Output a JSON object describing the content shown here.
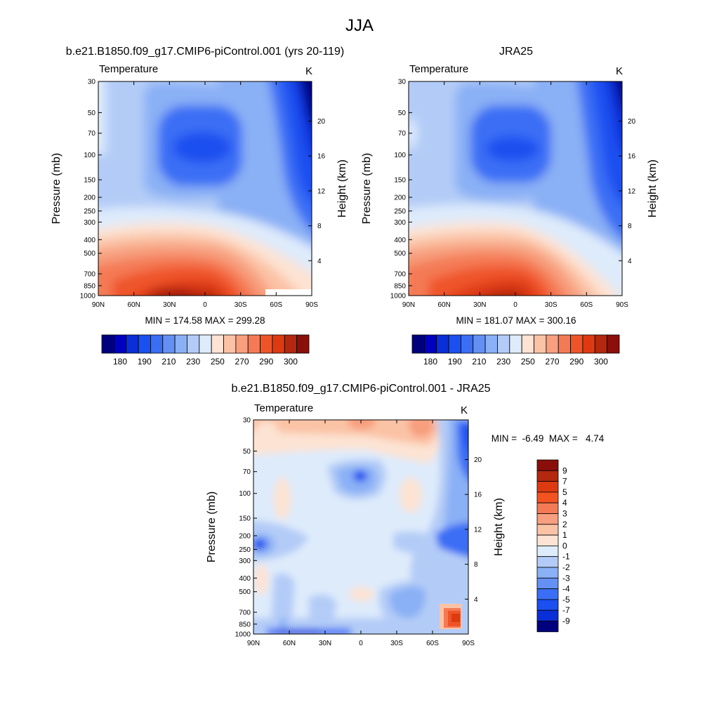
{
  "page_title": "JJA",
  "colors": {
    "temp_levels": [
      "#00007f",
      "#0000c0",
      "#0a2fd8",
      "#1a4ff0",
      "#3a6ef5",
      "#6390f2",
      "#8ab0f5",
      "#b3ccf7",
      "#deebfb",
      "#fde3d3",
      "#fbc3a6",
      "#f79f7e",
      "#f47a55",
      "#ef5429",
      "#de3a12",
      "#b3280e",
      "#8a0f0a"
    ],
    "diff_levels": [
      "#8a0f0a",
      "#b3280e",
      "#de3a12",
      "#f35321",
      "#f47a55",
      "#f79f7e",
      "#fbc3a6",
      "#fde3d3",
      "#deebfb",
      "#b3ccf7",
      "#8ab0f5",
      "#6390f2",
      "#3a6ef5",
      "#1a4ff0",
      "#0a2fd8",
      "#00007f"
    ]
  },
  "chart_data": [
    {
      "type": "heatmap",
      "title": "b.e21.B1850.f09_g17.CMIP6-piControl.001 (yrs 20-119)",
      "left_label": "Temperature",
      "right_label": "K",
      "xlabel": "",
      "ylabel": "Pressure (mb)",
      "y2label": "Height (km)",
      "x_ticks": [
        "90N",
        "60N",
        "30N",
        "0",
        "30S",
        "60S",
        "90S"
      ],
      "y_ticks": [
        "30",
        "50",
        "70",
        "100",
        "150",
        "200",
        "250",
        "300",
        "400",
        "500",
        "700",
        "850",
        "1000"
      ],
      "y2_ticks": [
        "20",
        "16",
        "12",
        "8",
        "4"
      ],
      "stats": "MIN = 174.58  MAX = 299.28",
      "min": 174.58,
      "max": 299.28,
      "colorbar_labels": [
        "180",
        "190",
        "210",
        "230",
        "250",
        "270",
        "290",
        "300"
      ]
    },
    {
      "type": "heatmap",
      "title": "JRA25",
      "left_label": "Temperature",
      "right_label": "K",
      "xlabel": "",
      "ylabel": "Pressure (mb)",
      "y2label": "Height (km)",
      "x_ticks": [
        "90N",
        "60N",
        "30N",
        "0",
        "30S",
        "60S",
        "90S"
      ],
      "y_ticks": [
        "30",
        "50",
        "70",
        "100",
        "150",
        "200",
        "250",
        "300",
        "400",
        "500",
        "700",
        "850",
        "1000"
      ],
      "y2_ticks": [
        "20",
        "16",
        "12",
        "8",
        "4"
      ],
      "stats": "MIN = 181.07  MAX = 300.16",
      "min": 181.07,
      "max": 300.16,
      "colorbar_labels": [
        "180",
        "190",
        "210",
        "230",
        "250",
        "270",
        "290",
        "300"
      ]
    },
    {
      "type": "heatmap",
      "title": "b.e21.B1850.f09_g17.CMIP6-piControl.001 - JRA25",
      "left_label": "Temperature",
      "right_label": "K",
      "xlabel": "",
      "ylabel": "Pressure (mb)",
      "y2label": "Height (km)",
      "x_ticks": [
        "90N",
        "60N",
        "30N",
        "0",
        "30S",
        "60S",
        "90S"
      ],
      "y_ticks": [
        "30",
        "50",
        "70",
        "100",
        "150",
        "200",
        "250",
        "300",
        "400",
        "500",
        "700",
        "850",
        "1000"
      ],
      "y2_ticks": [
        "20",
        "16",
        "12",
        "8",
        "4"
      ],
      "stats": "MIN =  -6.49  MAX =   4.74",
      "min": -6.49,
      "max": 4.74,
      "colorbar_labels": [
        "9",
        "7",
        "5",
        "4",
        "3",
        "2",
        "1",
        "0",
        "-1",
        "-2",
        "-3",
        "-4",
        "-5",
        "-7",
        "-9"
      ]
    }
  ]
}
